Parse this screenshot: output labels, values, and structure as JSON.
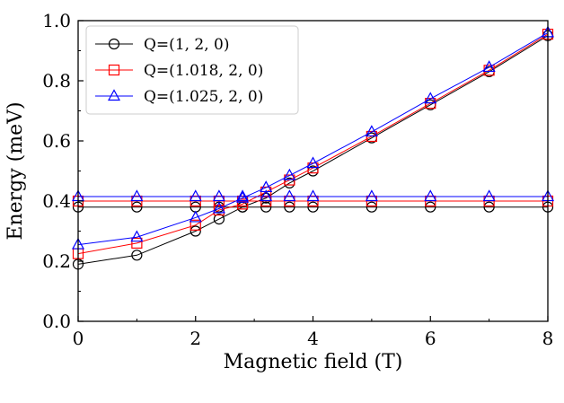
{
  "chart_data": {
    "type": "line",
    "xlabel": "Magnetic field (T)",
    "ylabel": "Energy (meV)",
    "xlim": [
      0,
      8
    ],
    "ylim": [
      0.0,
      1.0
    ],
    "x_ticks": [
      0,
      2,
      4,
      6,
      8
    ],
    "x_tick_labels": [
      "0",
      "2",
      "4",
      "6",
      "8"
    ],
    "y_ticks": [
      0.0,
      0.2,
      0.4,
      0.6,
      0.8,
      1.0
    ],
    "y_tick_labels": [
      "0.0",
      "0.2",
      "0.4",
      "0.6",
      "0.8",
      "1.0"
    ],
    "grid": false,
    "legend_position": "top-left",
    "series": [
      {
        "name": "Q=(1, 2, 0)",
        "color": "#000000",
        "marker": "circle",
        "branches": [
          {
            "x": [
              0,
              1,
              2,
              2.4,
              2.8,
              3.2,
              3.6,
              4,
              5,
              6,
              7,
              8
            ],
            "y": [
              0.19,
              0.22,
              0.3,
              0.34,
              0.38,
              0.41,
              0.46,
              0.5,
              0.61,
              0.72,
              0.83,
              0.95
            ]
          },
          {
            "x": [
              0,
              1,
              2,
              2.4,
              2.8,
              3.2,
              3.6,
              4,
              5,
              6,
              7,
              8
            ],
            "y": [
              0.38,
              0.38,
              0.38,
              0.38,
              0.38,
              0.38,
              0.38,
              0.38,
              0.38,
              0.38,
              0.38,
              0.38
            ]
          }
        ]
      },
      {
        "name": "Q=(1.018, 2, 0)",
        "color": "#ff0000",
        "marker": "square",
        "branches": [
          {
            "x": [
              0,
              1,
              2,
              2.4,
              2.8,
              3.2,
              3.6,
              4,
              5,
              6,
              7,
              8
            ],
            "y": [
              0.225,
              0.26,
              0.32,
              0.37,
              0.39,
              0.43,
              0.47,
              0.51,
              0.615,
              0.725,
              0.835,
              0.955
            ]
          },
          {
            "x": [
              0,
              1,
              2,
              2.4,
              2.8,
              3.2,
              3.6,
              4,
              5,
              6,
              7,
              8
            ],
            "y": [
              0.4,
              0.4,
              0.4,
              0.4,
              0.4,
              0.4,
              0.4,
              0.4,
              0.4,
              0.4,
              0.4,
              0.4
            ]
          }
        ]
      },
      {
        "name": "Q=(1.025, 2, 0)",
        "color": "#0000ff",
        "marker": "triangle",
        "branches": [
          {
            "x": [
              0,
              1,
              2,
              2.4,
              2.8,
              3.2,
              3.6,
              4,
              5,
              6,
              7,
              8
            ],
            "y": [
              0.255,
              0.28,
              0.345,
              0.375,
              0.41,
              0.445,
              0.485,
              0.525,
              0.63,
              0.74,
              0.845,
              0.96
            ]
          },
          {
            "x": [
              0,
              1,
              2,
              2.4,
              2.8,
              3.2,
              3.6,
              4,
              5,
              6,
              7,
              8
            ],
            "y": [
              0.415,
              0.415,
              0.415,
              0.415,
              0.415,
              0.415,
              0.415,
              0.415,
              0.415,
              0.415,
              0.415,
              0.415
            ]
          }
        ]
      }
    ]
  }
}
